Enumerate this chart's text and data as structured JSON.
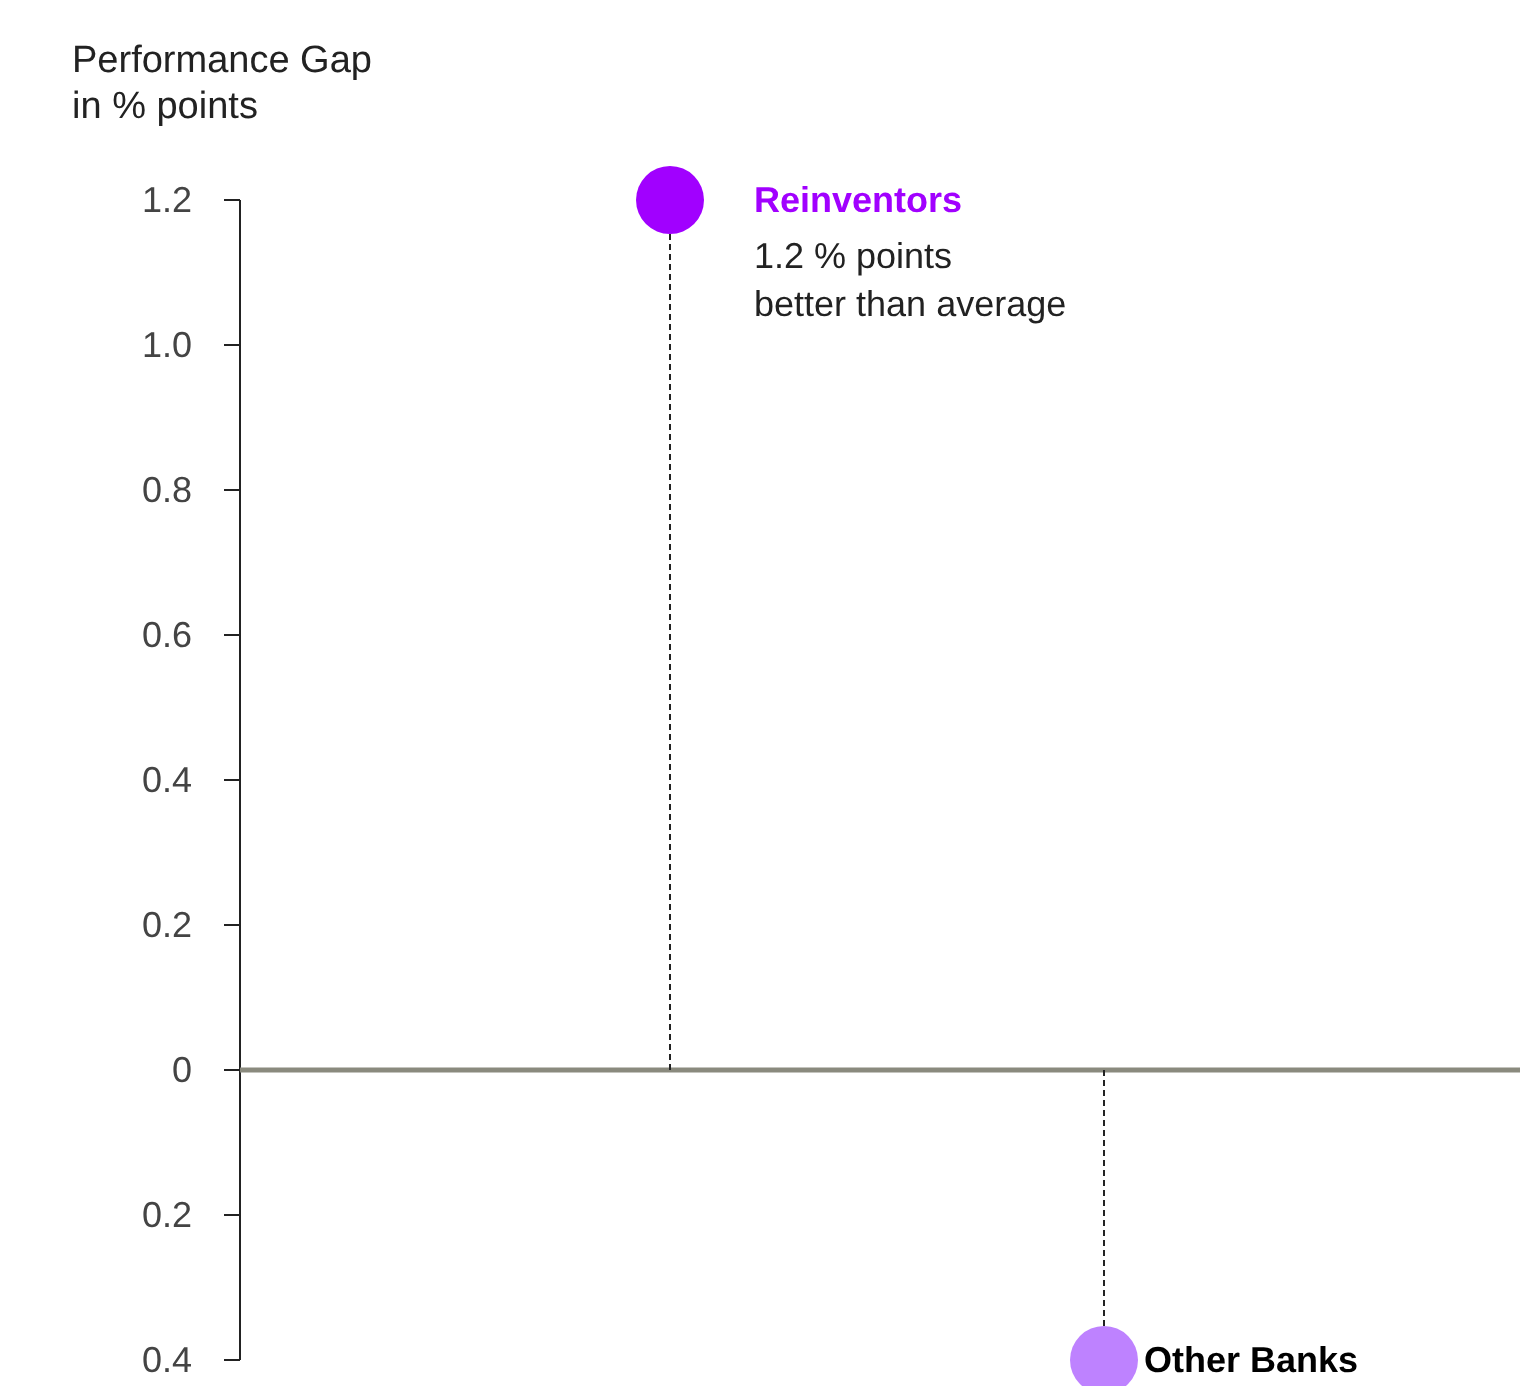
{
  "chart_data": {
    "type": "lollipop",
    "ylabel": "Performance Gap\nin % points",
    "categories": [
      "Reinventors",
      "Other Banks"
    ],
    "values": [
      1.2,
      -0.4
    ],
    "colors": [
      "#a100ff",
      "#be82ff"
    ],
    "ylim": [
      -0.4,
      1.2
    ],
    "yticks": [
      {
        "value": -0.4,
        "label": "0.4"
      },
      {
        "value": -0.2,
        "label": "0.2"
      },
      0,
      0.2,
      0.4,
      0.6,
      0.8,
      {
        "value": 1,
        "label": "1.0"
      },
      1.2
    ],
    "tick_labels": "y",
    "grid": false,
    "line_style": "dashed",
    "marker": "circle",
    "ref_lines": [
      {
        "axis": "y",
        "value": 0,
        "color": "#8a8a7e"
      }
    ],
    "annotations": [
      "1.2 % points\nbetter than average"
    ]
  }
}
